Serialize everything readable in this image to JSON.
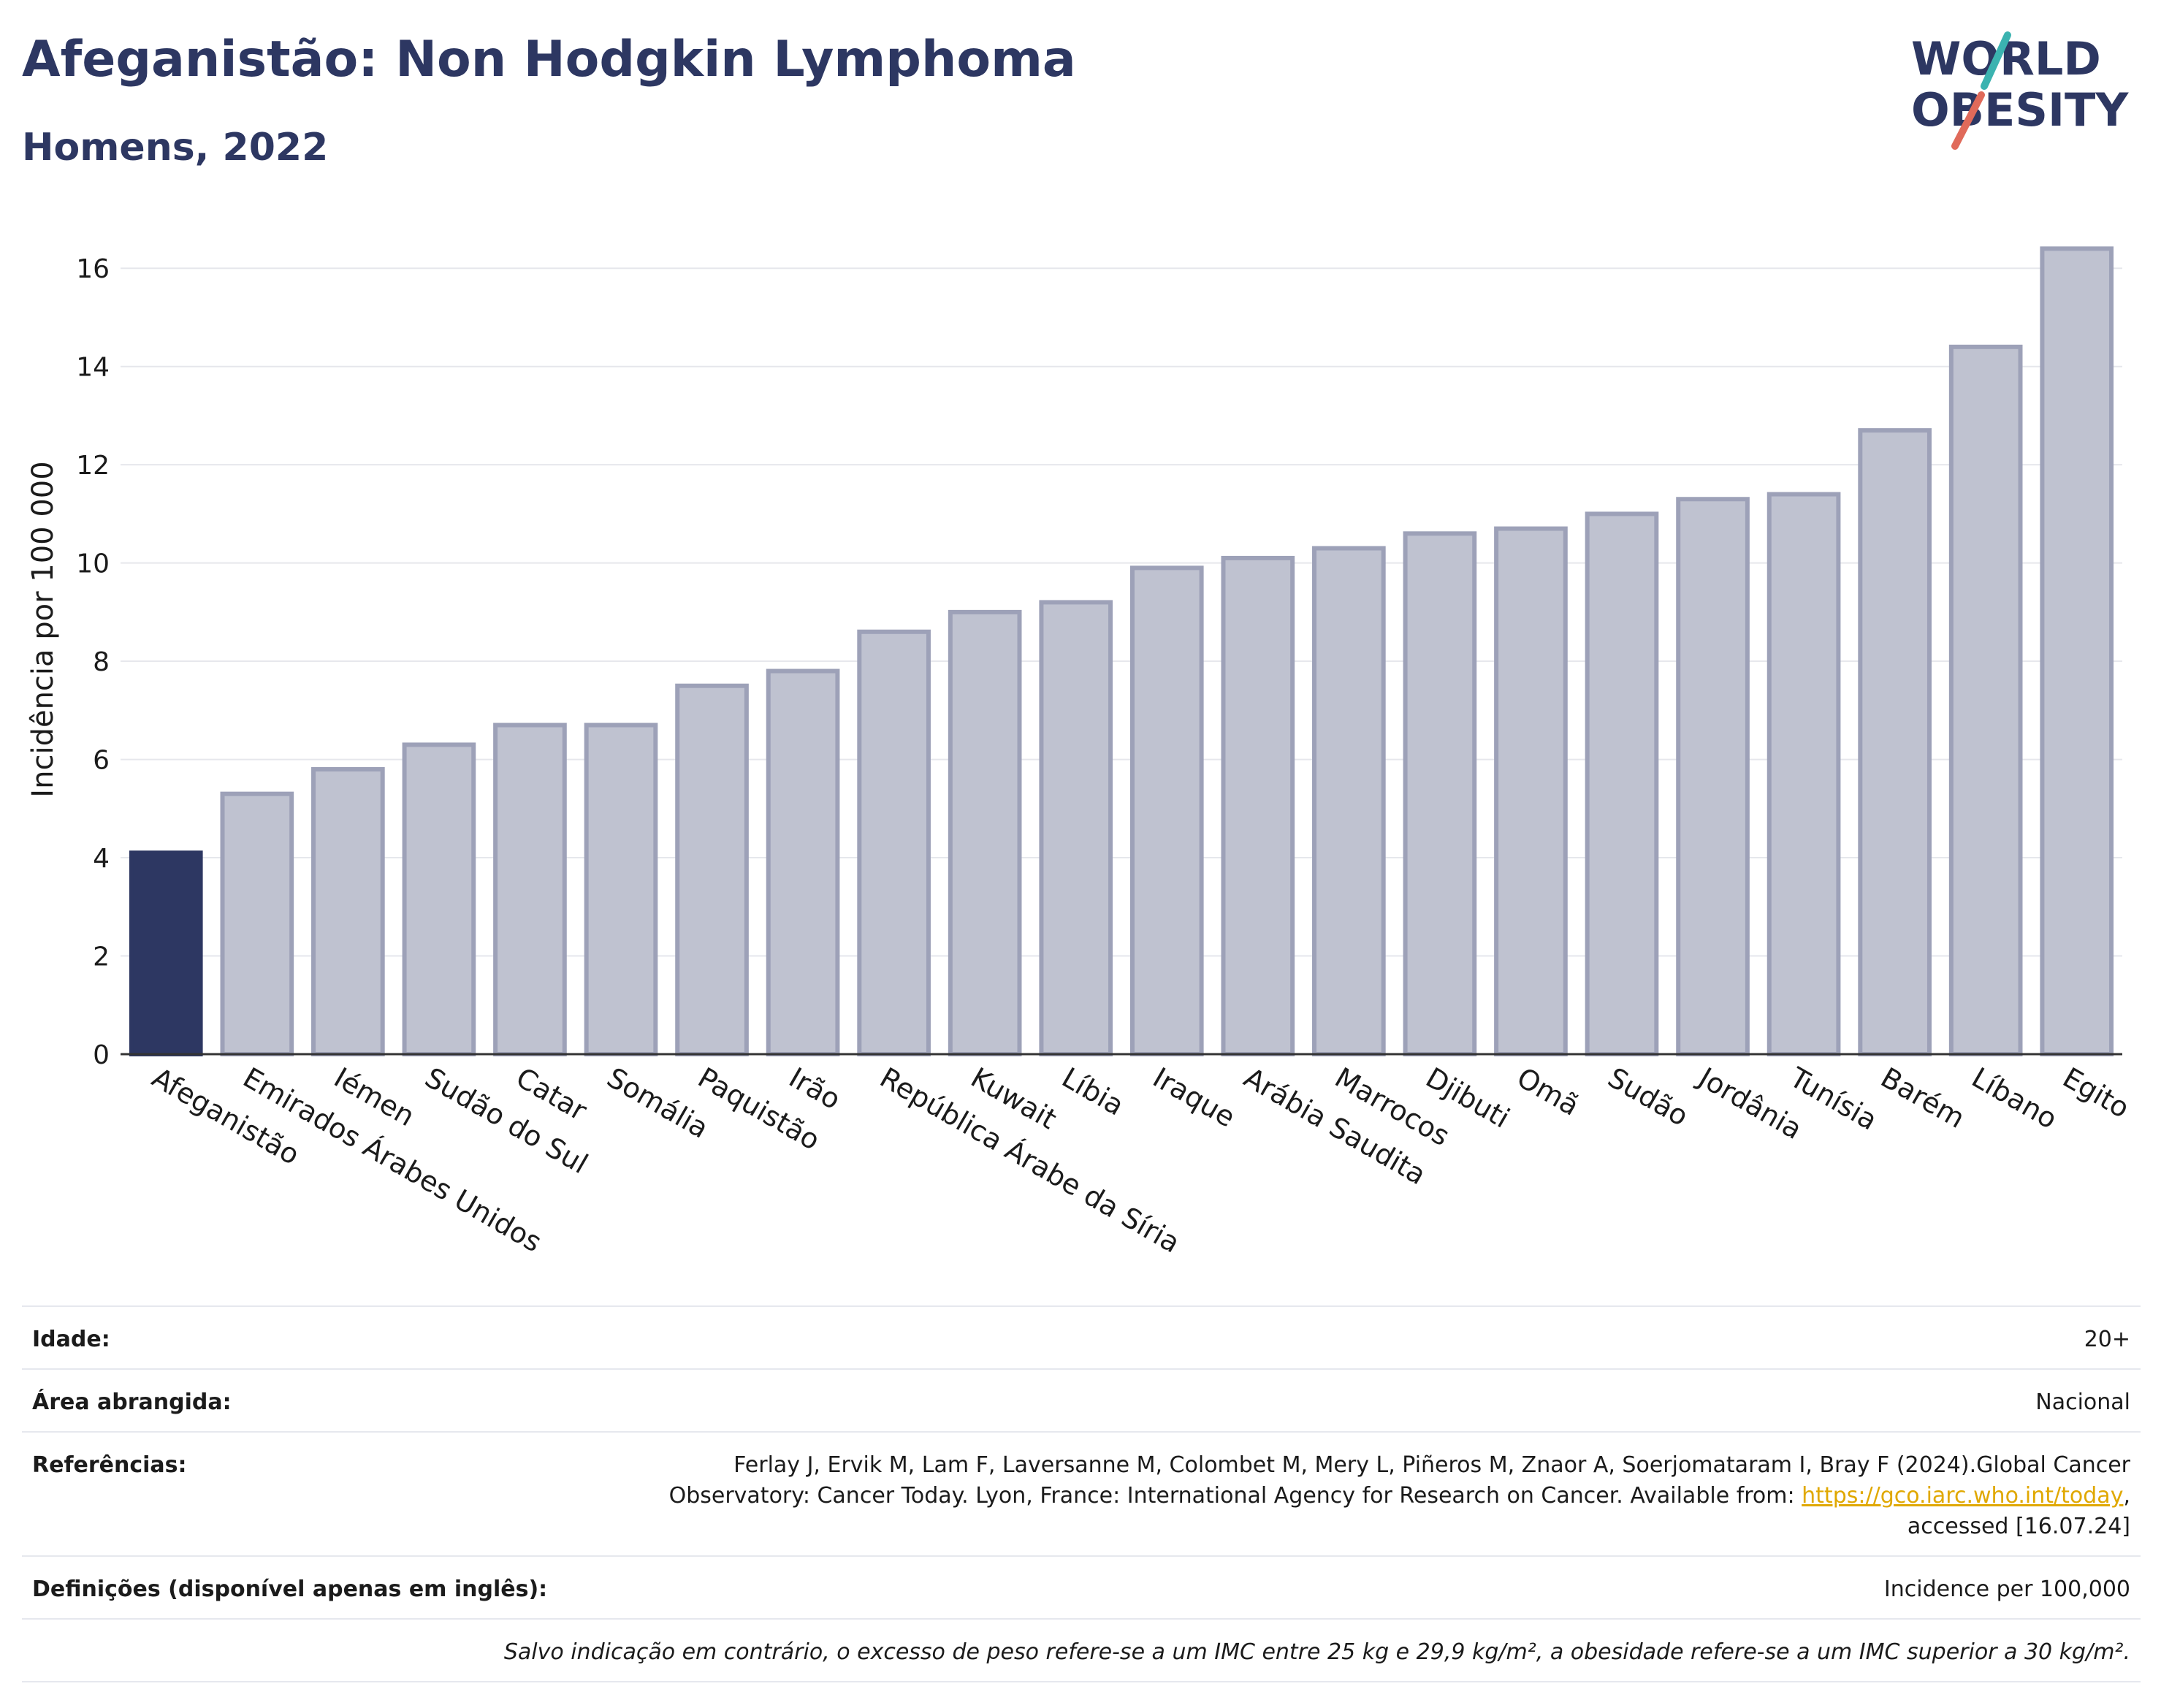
{
  "header": {
    "title": "Afeganistão: Non Hodgkin Lymphoma",
    "subtitle": "Homens, 2022"
  },
  "logo": {
    "line1": "WORLD",
    "line2": "OBESITY",
    "accent_colors": [
      "#3bb3b0",
      "#e06a5a"
    ]
  },
  "colors": {
    "highlight_bar": "#2d3762",
    "other_bar_fill": "#bfc2d0",
    "other_bar_stroke": "#9da1b8",
    "grid": "#e6e7ec"
  },
  "chart_data": {
    "type": "bar",
    "title": "Afeganistão: Non Hodgkin Lymphoma",
    "subtitle": "Homens, 2022",
    "xlabel": "",
    "ylabel": "Incidência por 100 000",
    "ylim": [
      0,
      17
    ],
    "yticks": [
      0,
      2,
      4,
      6,
      8,
      10,
      12,
      14,
      16
    ],
    "grid": true,
    "highlight": "Afeganistão",
    "categories": [
      "Afeganistão",
      "Emirados Árabes Unidos",
      "Iémen",
      "Sudão do Sul",
      "Catar",
      "Somália",
      "Paquistão",
      "Irão",
      "República Árabe da Síria",
      "Kuwait",
      "Líbia",
      "Iraque",
      "Arábia Saudita",
      "Marrocos",
      "Djibuti",
      "Omã",
      "Sudão",
      "Jordânia",
      "Tunísia",
      "Barém",
      "Líbano",
      "Egito"
    ],
    "values": [
      4.1,
      5.3,
      5.8,
      6.3,
      6.7,
      6.7,
      7.5,
      7.8,
      8.6,
      9.0,
      9.2,
      9.9,
      10.1,
      10.3,
      10.6,
      10.7,
      11.0,
      11.3,
      11.4,
      12.7,
      14.4,
      16.4
    ]
  },
  "info": {
    "age_label": "Idade:",
    "age_value": "20+",
    "area_label": "Área abrangida:",
    "area_value": "Nacional",
    "refs_label": "Referências:",
    "refs_text": "Ferlay J, Ervik M, Lam F, Laversanne M, Colombet M, Mery L, Piñeros M, Znaor A, Soerjomataram I, Bray F (2024).Global Cancer Observatory: Cancer Today. Lyon, France: International Agency for Research on Cancer. Available from:",
    "refs_link": "https://gco.iarc.who.int/today",
    "refs_tail": ", accessed [16.07.24]",
    "defs_label": "Definições (disponível apenas em inglês):",
    "defs_value": "Incidence per 100,000",
    "note": "Salvo indicação em contrário, o excesso de peso refere-se a um IMC entre 25 kg e 29,9 kg/m², a obesidade refere-se a um IMC superior a 30 kg/m²."
  }
}
